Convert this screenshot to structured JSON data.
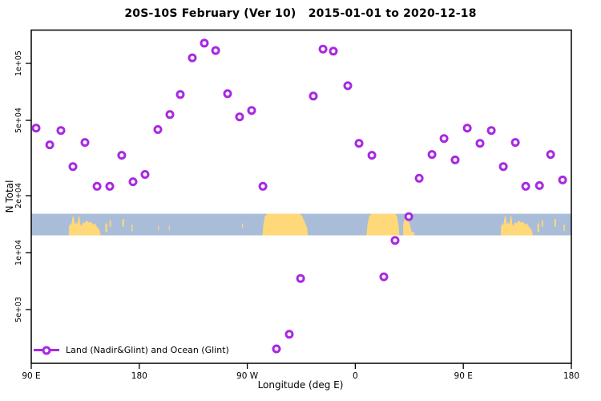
{
  "title": "20S-10S February (Ver 10)   2015-01-01 to 2020-12-18",
  "colors": {
    "background": "#FFFFFF",
    "axis": "#000000",
    "point": "#A928E2",
    "ocean": "#A9BDD8",
    "land": "#FFD87A"
  },
  "chart_data": {
    "type": "scatter",
    "title": "20S-10S February (Ver 10)  2015-01-01 to 2020-12-18",
    "xlabel": "Longitude (deg E)",
    "ylabel": "N Total",
    "x_scale": "linear",
    "y_scale": "log",
    "xlim": [
      90,
      540
    ],
    "ylim": [
      2600,
      150000
    ],
    "grid": false,
    "x_ticks": [
      {
        "lon": 90,
        "label": "90 E"
      },
      {
        "lon": 180,
        "label": "180"
      },
      {
        "lon": 270,
        "label": "90 W"
      },
      {
        "lon": 360,
        "label": "0"
      },
      {
        "lon": 450,
        "label": "90 E"
      },
      {
        "lon": 540,
        "label": "180"
      }
    ],
    "y_ticks": [
      {
        "value": 5000,
        "label": "5e+03"
      },
      {
        "value": 10000,
        "label": "1e+04"
      },
      {
        "value": 20000,
        "label": "2e+04"
      },
      {
        "value": 50000,
        "label": "5e+04"
      },
      {
        "value": 100000,
        "label": "1e+05"
      }
    ],
    "legend": {
      "label": "Land (Nadir&Glint) and Ocean (Glint)",
      "marker": "open-circle-on-line",
      "position": "bottom-left"
    },
    "series": [
      {
        "name": "Land (Nadir&Glint) and Ocean (Glint)",
        "marker": "open-circle",
        "points": [
          {
            "lon": 94.0,
            "n": 45500
          },
          {
            "lon": 105.4,
            "n": 37100
          },
          {
            "lon": 114.7,
            "n": 44200
          },
          {
            "lon": 124.7,
            "n": 28500
          },
          {
            "lon": 134.7,
            "n": 38200
          },
          {
            "lon": 144.8,
            "n": 22400
          },
          {
            "lon": 155.4,
            "n": 22400
          },
          {
            "lon": 165.4,
            "n": 32700
          },
          {
            "lon": 174.8,
            "n": 23700
          },
          {
            "lon": 184.8,
            "n": 25900
          },
          {
            "lon": 195.5,
            "n": 44700
          },
          {
            "lon": 205.5,
            "n": 53700
          },
          {
            "lon": 214.2,
            "n": 68500
          },
          {
            "lon": 224.2,
            "n": 107000
          },
          {
            "lon": 234.2,
            "n": 128000
          },
          {
            "lon": 243.6,
            "n": 117000
          },
          {
            "lon": 253.6,
            "n": 69200
          },
          {
            "lon": 263.6,
            "n": 52200
          },
          {
            "lon": 273.6,
            "n": 56400
          },
          {
            "lon": 283.0,
            "n": 22400
          },
          {
            "lon": 294.3,
            "n": 3100
          },
          {
            "lon": 305.0,
            "n": 3700
          },
          {
            "lon": 314.4,
            "n": 7300
          },
          {
            "lon": 325.0,
            "n": 67200
          },
          {
            "lon": 333.1,
            "n": 119000
          },
          {
            "lon": 341.7,
            "n": 116000
          },
          {
            "lon": 353.7,
            "n": 76200
          },
          {
            "lon": 363.1,
            "n": 37800
          },
          {
            "lon": 373.8,
            "n": 32700
          },
          {
            "lon": 383.8,
            "n": 7450
          },
          {
            "lon": 393.1,
            "n": 11600
          },
          {
            "lon": 404.5,
            "n": 15500
          },
          {
            "lon": 413.2,
            "n": 24700
          },
          {
            "lon": 423.9,
            "n": 33000
          },
          {
            "lon": 433.9,
            "n": 40100
          },
          {
            "lon": 443.2,
            "n": 30900
          },
          {
            "lon": 453.3,
            "n": 45500
          },
          {
            "lon": 463.9,
            "n": 37800
          },
          {
            "lon": 473.3,
            "n": 44200
          },
          {
            "lon": 483.3,
            "n": 28500
          },
          {
            "lon": 493.3,
            "n": 38200
          },
          {
            "lon": 502.0,
            "n": 22400
          },
          {
            "lon": 513.4,
            "n": 22600
          },
          {
            "lon": 522.7,
            "n": 33000
          },
          {
            "lon": 532.7,
            "n": 24200
          }
        ]
      }
    ],
    "map_band": {
      "kind": "latitude-strip-world-map",
      "lat_range": "20S-10S",
      "ocean_color": "#A9BDD8",
      "land_color": "#FFD87A",
      "repeat_period_deg": 360,
      "land_polygons": [
        {
          "name": "australia",
          "points": [
            [
              121.3,
              1
            ],
            [
              121.3,
              0.6
            ],
            [
              122.5,
              0.45
            ],
            [
              123.4,
              0.52
            ],
            [
              124.4,
              0.15
            ],
            [
              125.3,
              0.1
            ],
            [
              126.3,
              0.52
            ],
            [
              127.3,
              0.38
            ],
            [
              128.3,
              0.5
            ],
            [
              129.3,
              0.12
            ],
            [
              129.9,
              0.05
            ],
            [
              130.7,
              0.45
            ],
            [
              131.7,
              0.58
            ],
            [
              133.0,
              0.38
            ],
            [
              134.3,
              0.45
            ],
            [
              136.0,
              0.3
            ],
            [
              137.9,
              0.42
            ],
            [
              139.6,
              0.36
            ],
            [
              141.6,
              0.5
            ],
            [
              143.1,
              0.44
            ],
            [
              144.6,
              0.6
            ],
            [
              146.0,
              0.68
            ],
            [
              147.2,
              0.8
            ],
            [
              147.8,
              1
            ]
          ]
        },
        {
          "name": "south-america",
          "points": [
            [
              282.6,
              1
            ],
            [
              283.4,
              0.5
            ],
            [
              284.6,
              0.12
            ],
            [
              286.6,
              0
            ],
            [
              313.6,
              0
            ],
            [
              315.6,
              0.1
            ],
            [
              317.6,
              0.35
            ],
            [
              319.6,
              0.6
            ],
            [
              320.6,
              1
            ]
          ]
        },
        {
          "name": "africa",
          "points": [
            [
              369.3,
              1
            ],
            [
              370.3,
              0.45
            ],
            [
              371.9,
              0.08
            ],
            [
              373.6,
              0
            ],
            [
              393.6,
              0
            ],
            [
              394.9,
              0.15
            ],
            [
              395.9,
              0.5
            ],
            [
              396.7,
              1
            ]
          ]
        },
        {
          "name": "madagascar",
          "points": [
            [
              399.8,
              1
            ],
            [
              399.9,
              0.5
            ],
            [
              401.1,
              0.2
            ],
            [
              403.6,
              0.25
            ],
            [
              405.6,
              0.5
            ],
            [
              406.9,
              0.85
            ],
            [
              408.6,
              0.82
            ],
            [
              409.4,
              1
            ]
          ]
        }
      ],
      "island_specks": [
        [
          152.5,
          1.5,
          0.45,
          0.85
        ],
        [
          155.8,
          1.2,
          0.3,
          0.6
        ],
        [
          166.6,
          1.4,
          0.25,
          0.6
        ],
        [
          174.0,
          1.0,
          0.5,
          0.8
        ],
        [
          196.0,
          0.8,
          0.55,
          0.75
        ],
        [
          205.0,
          0.8,
          0.55,
          0.75
        ],
        [
          266.0,
          0.9,
          0.45,
          0.65
        ]
      ]
    }
  }
}
